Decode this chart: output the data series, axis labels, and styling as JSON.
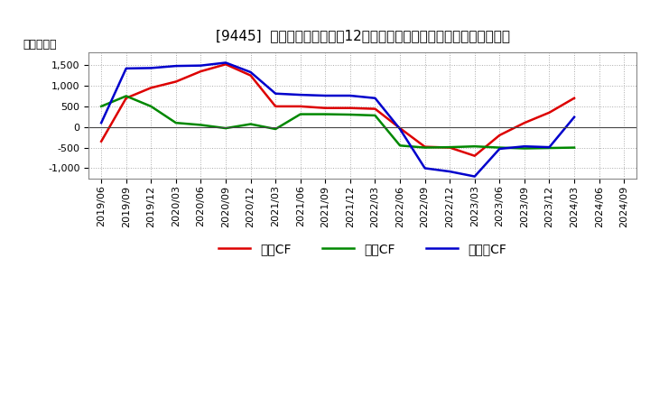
{
  "title": "[9445]  キャッシュフローの12か月移動合計の対前年同期増減額の推移",
  "ylabel": "（百万円）",
  "background_color": "#ffffff",
  "plot_bg_color": "#ffffff",
  "grid_color": "#aaaaaa",
  "x_labels": [
    "2019/06",
    "2019/09",
    "2019/12",
    "2020/03",
    "2020/06",
    "2020/09",
    "2020/12",
    "2021/03",
    "2021/06",
    "2021/09",
    "2021/12",
    "2022/03",
    "2022/06",
    "2022/09",
    "2022/12",
    "2023/03",
    "2023/06",
    "2023/09",
    "2023/12",
    "2024/03",
    "2024/06",
    "2024/09"
  ],
  "eigyo_cf": [
    -350,
    700,
    950,
    1100,
    1350,
    1520,
    1250,
    500,
    500,
    460,
    460,
    440,
    -30,
    -480,
    -500,
    -700,
    -200,
    100,
    350,
    700,
    null,
    null
  ],
  "toshi_cf": [
    500,
    750,
    500,
    100,
    50,
    -30,
    70,
    -50,
    310,
    310,
    300,
    280,
    -450,
    -500,
    -490,
    -470,
    -500,
    -520,
    -510,
    -500,
    null,
    null
  ],
  "free_cf": [
    100,
    1420,
    1430,
    1480,
    1490,
    1560,
    1330,
    810,
    780,
    760,
    760,
    700,
    -50,
    -1000,
    -1080,
    -1200,
    -530,
    -470,
    -490,
    240,
    null,
    null
  ],
  "eigyo_color": "#dd0000",
  "toshi_color": "#008800",
  "free_color": "#0000cc",
  "line_width": 1.8,
  "ylim": [
    -1250,
    1800
  ],
  "yticks": [
    -1000,
    -500,
    0,
    500,
    1000,
    1500
  ],
  "legend_labels": [
    "営業CF",
    "投資CF",
    "フリーCF"
  ],
  "title_fontsize": 11,
  "label_fontsize": 9,
  "tick_fontsize": 8
}
